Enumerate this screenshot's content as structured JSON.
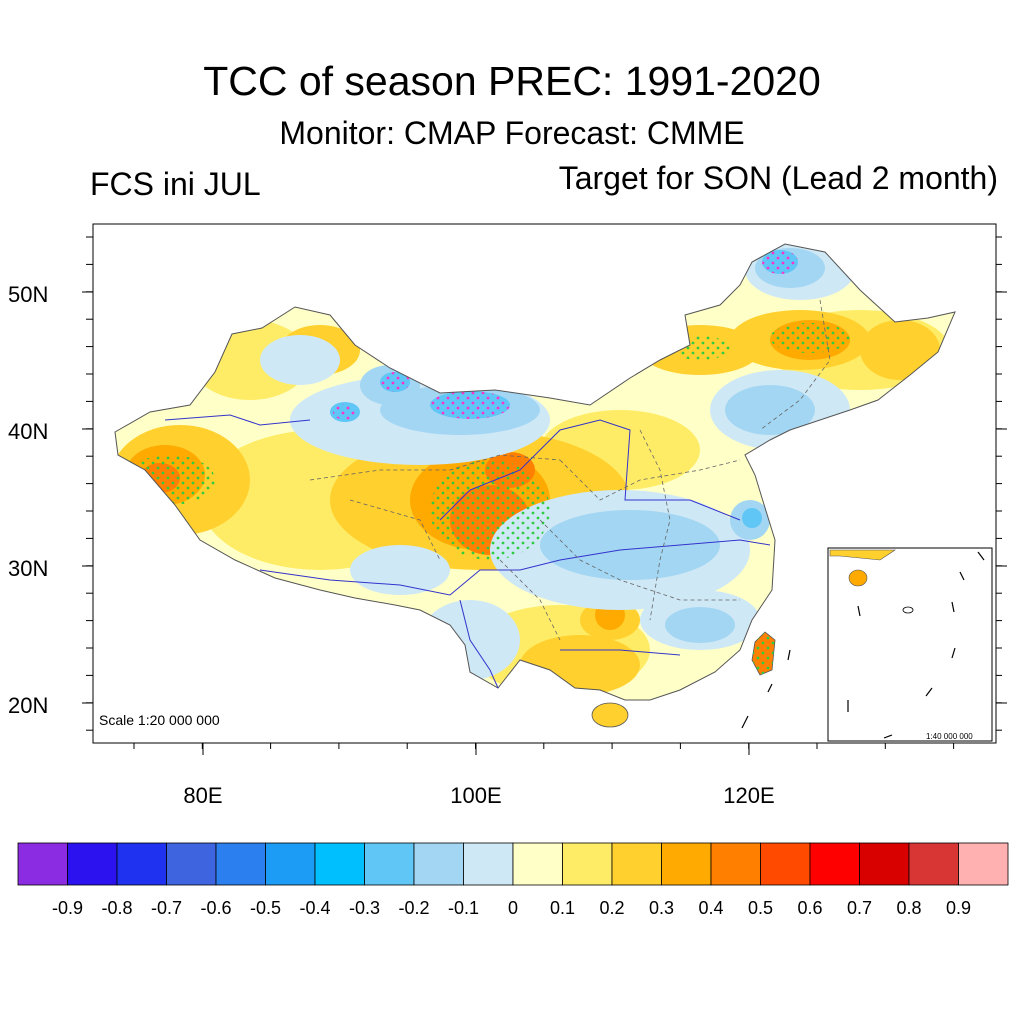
{
  "title": "TCC of season PREC: 1991-2020",
  "subtitle": "Monitor: CMAP   Forecast: CMME",
  "left_label": "FCS ini JUL",
  "right_label": "Target for SON (Lead 2 month)",
  "axes": {
    "lat_ticks": [
      "50N",
      "40N",
      "30N",
      "20N"
    ],
    "lon_ticks": [
      "80E",
      "100E",
      "120E"
    ],
    "lat_values": [
      50,
      40,
      30,
      20
    ],
    "lon_values": [
      80,
      100,
      120
    ]
  },
  "scale_main": "Scale 1:20 000 000",
  "scale_inset": "1:40 000 000",
  "colorbar": {
    "labels": [
      "-0.9",
      "-0.8",
      "-0.7",
      "-0.6",
      "-0.5",
      "-0.4",
      "-0.3",
      "-0.2",
      "-0.1",
      "0",
      "0.1",
      "0.2",
      "0.3",
      "0.4",
      "0.5",
      "0.6",
      "0.7",
      "0.8",
      "0.9"
    ],
    "colors": [
      "#8b2be2",
      "#2b12ee",
      "#1e32f0",
      "#3f64e0",
      "#2c7fee",
      "#1d9cf5",
      "#00bfff",
      "#5fc6f5",
      "#a3d6f2",
      "#cfe8f6",
      "#ffffc8",
      "#ffec66",
      "#ffd02e",
      "#ffaa00",
      "#ff8000",
      "#ff4a00",
      "#ff0000",
      "#d90000",
      "#d83535",
      "#ffb0b0"
    ]
  }
}
